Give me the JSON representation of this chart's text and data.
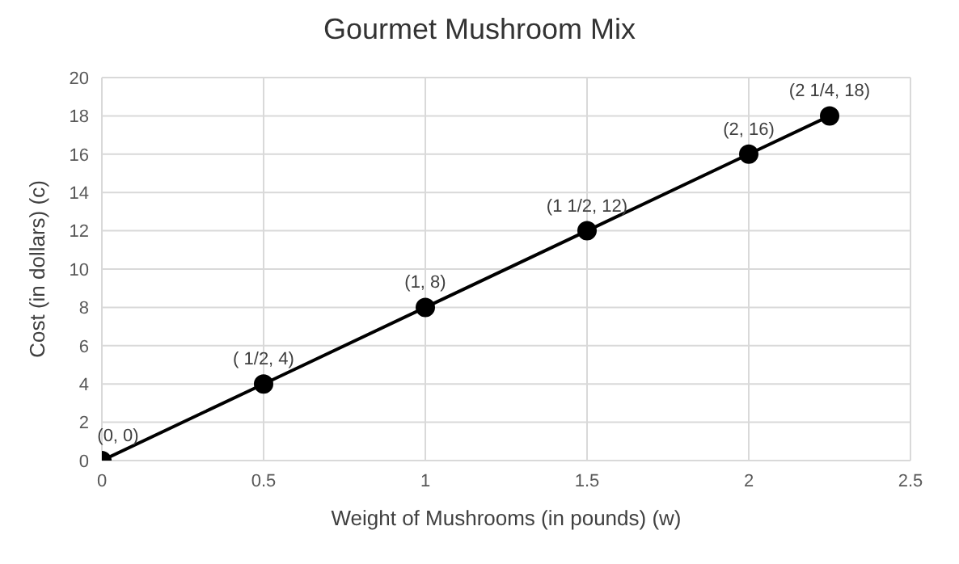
{
  "chart_data": {
    "type": "line",
    "title": "Gourmet Mushroom Mix",
    "xlabel": "Weight of Mushrooms (in pounds)  (w)",
    "ylabel": "Cost (in dollars)  (c)",
    "x": [
      0,
      0.5,
      1,
      1.5,
      2,
      2.25
    ],
    "series": [
      {
        "color": "#000000",
        "values": [
          0,
          4,
          8,
          12,
          16,
          18
        ],
        "value_labels": [
          "(0, 0)",
          "( 1/2, 4)",
          "(1, 8)",
          "(1 1/2, 12)",
          "(2, 16)",
          "(2 1/4, 18)"
        ]
      }
    ],
    "xlim": [
      0,
      2.5
    ],
    "xticks": [
      0,
      0.5,
      1,
      1.5,
      2,
      2.5
    ],
    "ylim": [
      0,
      20
    ],
    "yticks": [
      0,
      2,
      4,
      6,
      8,
      10,
      12,
      14,
      16,
      18,
      20
    ],
    "grid": true,
    "marker": "circle",
    "line_style": "solid"
  }
}
